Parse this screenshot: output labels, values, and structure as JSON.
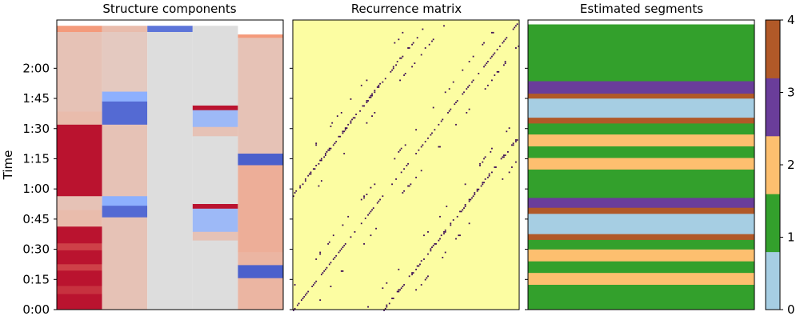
{
  "chart_data": [
    {
      "type": "heatmap",
      "title": "Structure components",
      "ylabel": "Time",
      "columns": 5,
      "colormap": "coolwarm",
      "yticks": [
        "0:00",
        "0:15",
        "0:30",
        "0:45",
        "1:00",
        "1:15",
        "1:30",
        "1:45",
        "2:00"
      ],
      "ylim": [
        0,
        2.4
      ],
      "cells": [
        [
          [
            0,
            0.055,
            0.95
          ],
          [
            0.055,
            0.083,
            0.85
          ],
          [
            0.083,
            0.136,
            0.95
          ],
          [
            0.136,
            0.158,
            0.8
          ],
          [
            0.158,
            0.206,
            0.95
          ],
          [
            0.206,
            0.23,
            0.8
          ],
          [
            0.23,
            0.288,
            0.95
          ],
          [
            0.288,
            0.345,
            0.25
          ],
          [
            0.345,
            0.393,
            0.2
          ],
          [
            0.393,
            0.64,
            0.95
          ],
          [
            0.64,
            0.685,
            0.25
          ],
          [
            0.685,
            0.96,
            0.2
          ],
          [
            0.96,
            0.98,
            0.5
          ]
        ],
        [
          [
            0,
            0.2,
            0.2
          ],
          [
            0.2,
            0.32,
            0.2
          ],
          [
            0.32,
            0.36,
            -0.85
          ],
          [
            0.36,
            0.393,
            -0.5
          ],
          [
            0.393,
            0.64,
            0.2
          ],
          [
            0.64,
            0.72,
            -0.85
          ],
          [
            0.72,
            0.754,
            -0.5
          ],
          [
            0.754,
            0.96,
            0.15
          ],
          [
            0.96,
            0.98,
            0.25
          ]
        ],
        [
          [
            0,
            0.96,
            0
          ],
          [
            0.96,
            0.98,
            -0.8
          ]
        ],
        [
          [
            0,
            0.24,
            0
          ],
          [
            0.24,
            0.27,
            0.2
          ],
          [
            0.27,
            0.35,
            -0.4
          ],
          [
            0.35,
            0.366,
            0.95
          ],
          [
            0.366,
            0.393,
            0
          ],
          [
            0.393,
            0.6,
            0
          ],
          [
            0.6,
            0.632,
            0.2
          ],
          [
            0.632,
            0.69,
            -0.4
          ],
          [
            0.69,
            0.706,
            0.95
          ],
          [
            0.706,
            0.98,
            0
          ]
        ],
        [
          [
            0,
            0.11,
            0.3
          ],
          [
            0.11,
            0.155,
            -0.9
          ],
          [
            0.155,
            0.2,
            0.3
          ],
          [
            0.2,
            0.5,
            0.35
          ],
          [
            0.5,
            0.54,
            -0.9
          ],
          [
            0.54,
            0.58,
            0.2
          ],
          [
            0.58,
            0.59,
            0.2
          ],
          [
            0.59,
            0.66,
            0.2
          ],
          [
            0.66,
            0.94,
            0.2
          ],
          [
            0.94,
            0.95,
            0.5
          ]
        ]
      ]
    },
    {
      "type": "scatter",
      "title": "Recurrence matrix",
      "colormap": "magma",
      "background": "#fcfda2",
      "mark_color": "#3a0a55"
    },
    {
      "type": "heatmap",
      "title": "Estimated segments",
      "palette": [
        "#a6cee3",
        "#33a02c",
        "#fdbf6f",
        "#6a3d9a",
        "#b15928"
      ],
      "colorbar_ticks": [
        "0",
        "1",
        "2",
        "3",
        "4"
      ],
      "segments": [
        [
          0.0,
          0.087,
          1
        ],
        [
          0.087,
          0.128,
          2
        ],
        [
          0.128,
          0.168,
          1
        ],
        [
          0.168,
          0.209,
          2
        ],
        [
          0.209,
          0.242,
          1
        ],
        [
          0.242,
          0.262,
          4
        ],
        [
          0.262,
          0.332,
          0
        ],
        [
          0.332,
          0.353,
          4
        ],
        [
          0.353,
          0.387,
          3
        ],
        [
          0.387,
          0.485,
          1
        ],
        [
          0.485,
          0.525,
          2
        ],
        [
          0.525,
          0.565,
          1
        ],
        [
          0.565,
          0.606,
          2
        ],
        [
          0.606,
          0.644,
          1
        ],
        [
          0.644,
          0.664,
          4
        ],
        [
          0.664,
          0.73,
          0
        ],
        [
          0.73,
          0.747,
          4
        ],
        [
          0.747,
          0.79,
          3
        ],
        [
          0.79,
          0.985,
          1
        ]
      ]
    }
  ]
}
